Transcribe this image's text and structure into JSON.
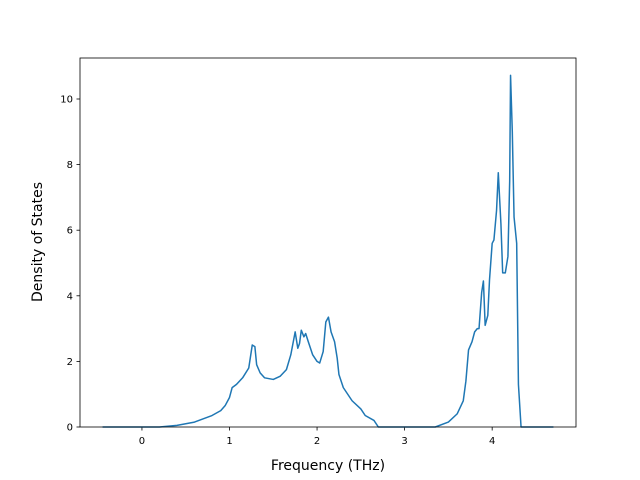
{
  "chart_data": {
    "type": "line",
    "xlabel": "Frequency (THz)",
    "ylabel": "Density of States",
    "x": [
      -0.45,
      0.2,
      0.4,
      0.6,
      0.8,
      0.9,
      0.95,
      1.0,
      1.03,
      1.08,
      1.15,
      1.22,
      1.26,
      1.29,
      1.31,
      1.35,
      1.4,
      1.5,
      1.58,
      1.65,
      1.7,
      1.75,
      1.78,
      1.8,
      1.82,
      1.85,
      1.87,
      1.9,
      1.95,
      2.0,
      2.03,
      2.07,
      2.1,
      2.13,
      2.16,
      2.2,
      2.23,
      2.25,
      2.3,
      2.4,
      2.5,
      2.55,
      2.65,
      2.7,
      3.35,
      3.5,
      3.6,
      3.67,
      3.7,
      3.73,
      3.77,
      3.8,
      3.83,
      3.85,
      3.88,
      3.9,
      3.92,
      3.95,
      3.97,
      4.0,
      4.02,
      4.05,
      4.07,
      4.1,
      4.12,
      4.15,
      4.18,
      4.2,
      4.21,
      4.23,
      4.25,
      4.28,
      4.3,
      4.33,
      4.7
    ],
    "series": [
      {
        "name": "DOS",
        "color": "#1f77b4",
        "values": [
          0,
          0,
          0.05,
          0.15,
          0.35,
          0.5,
          0.65,
          0.9,
          1.2,
          1.3,
          1.5,
          1.8,
          2.5,
          2.45,
          1.9,
          1.65,
          1.5,
          1.45,
          1.55,
          1.75,
          2.2,
          2.9,
          2.4,
          2.55,
          2.95,
          2.75,
          2.85,
          2.6,
          2.2,
          2.0,
          1.95,
          2.3,
          3.2,
          3.35,
          2.9,
          2.6,
          2.1,
          1.6,
          1.2,
          0.8,
          0.55,
          0.35,
          0.2,
          0,
          0,
          0.15,
          0.4,
          0.8,
          1.4,
          2.35,
          2.6,
          2.9,
          3.0,
          3.0,
          4.1,
          4.45,
          3.1,
          3.4,
          4.5,
          5.6,
          5.7,
          6.6,
          7.75,
          6.2,
          4.7,
          4.7,
          5.2,
          7.5,
          10.72,
          9.0,
          6.4,
          5.6,
          1.3,
          0,
          0
        ]
      }
    ],
    "xlim": [
      -0.7075,
      4.9575
    ],
    "ylim": [
      0,
      11.25
    ],
    "xticks": [
      0,
      1,
      2,
      3,
      4
    ],
    "yticks": [
      0,
      2,
      4,
      6,
      8,
      10
    ]
  }
}
